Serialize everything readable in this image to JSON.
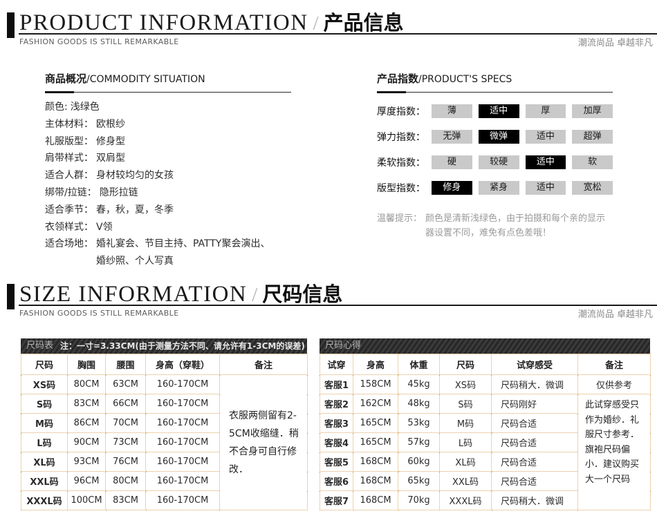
{
  "section_product": {
    "title_en": "PRODUCT INFORMATION",
    "separator": "/",
    "title_cn": "产品信息",
    "tagline_en": "FASHION GOODS IS STILL REMARKABLE",
    "tagline_cn": "潮流尚品 卓越非凡"
  },
  "section_size": {
    "title_en": "SIZE INFORMATION",
    "separator": "/",
    "title_cn": "尺码信息",
    "tagline_en": "FASHION GOODS IS STILL REMARKABLE",
    "tagline_cn": "潮流尚品 卓越非凡"
  },
  "commodity": {
    "title_cn": "商品概况",
    "title_en": "/COMMODITY SITUATION",
    "items": [
      {
        "label": "颜色:",
        "value": "浅绿色"
      },
      {
        "label": "主体材料：",
        "value": "欧根纱"
      },
      {
        "label": "礼服版型：",
        "value": "修身型"
      },
      {
        "label": "肩带样式：",
        "value": "双肩型"
      },
      {
        "label": "适合人群：",
        "value": "身材较均匀的女孩"
      },
      {
        "label": "绑带/拉链：",
        "value": "隐形拉链"
      },
      {
        "label": "适合季节：",
        "value": "春，秋，夏，冬季"
      },
      {
        "label": "衣领样式：",
        "value": "V领"
      },
      {
        "label": "适合场地：",
        "value": "婚礼宴会、节目主持、PATTY聚会演出、\n婚纱照、个人写真"
      }
    ]
  },
  "specs": {
    "title_cn": "产品指数",
    "title_en": "/PRODUCT'S SPECS",
    "rows": [
      {
        "label": "厚度指数：",
        "options": [
          "薄",
          "适中",
          "厚",
          "加厚"
        ],
        "selected": 1
      },
      {
        "label": "弹力指数：",
        "options": [
          "无弹",
          "微弹",
          "适中",
          "超弹"
        ],
        "selected": 1
      },
      {
        "label": "柔软指数：",
        "options": [
          "硬",
          "较硬",
          "适中",
          "软"
        ],
        "selected": 2
      },
      {
        "label": "版型指数：",
        "options": [
          "修身",
          "紧身",
          "适中",
          "宽松"
        ],
        "selected": 0
      }
    ],
    "notice_label": "温馨提示：",
    "notice_text": "颜色是清新浅绿色，由于拍摄和每个亲的显示器设置不同，难免有点色差哦！"
  },
  "size_table": {
    "caption": "尺码表",
    "caption_note": "注：一寸=3.33CM(由于测量方法不同、请允许有1-3CM的误差)",
    "columns": [
      "尺码",
      "胸围",
      "腰围",
      "身高（穿鞋）",
      "备注"
    ],
    "rows": [
      {
        "cells": [
          "XS码",
          "80CM",
          "63CM",
          "160-170CM"
        ],
        "remark": {
          "text": "衣服两侧留有2-5CM收缩缝．稍不合身可自行修改．",
          "rowspan": 7,
          "cls": "remark-big"
        }
      },
      {
        "cells": [
          "S码",
          "83CM",
          "66CM",
          "160-170CM"
        ]
      },
      {
        "cells": [
          "M码",
          "86CM",
          "70CM",
          "160-170CM"
        ]
      },
      {
        "cells": [
          "L码",
          "90CM",
          "73CM",
          "160-170CM"
        ]
      },
      {
        "cells": [
          "XL码",
          "93CM",
          "76CM",
          "160-170CM"
        ]
      },
      {
        "cells": [
          "XXL码",
          "96CM",
          "80CM",
          "160-170CM"
        ]
      },
      {
        "cells": [
          "XXXL码",
          "100CM",
          "83CM",
          "160-170CM"
        ]
      }
    ]
  },
  "fit_table": {
    "caption": "尺码心得",
    "caption_note": "",
    "columns": [
      "试穿",
      "身高",
      "体重",
      "尺码",
      "试穿感受",
      "备注"
    ],
    "rows": [
      {
        "cells": [
          "客服1",
          "158CM",
          "45kg",
          "XS码",
          "尺码稍大．微调"
        ],
        "remark": {
          "text": "仅供参考",
          "rowspan": 1,
          "cls": "remark-center"
        }
      },
      {
        "cells": [
          "客服2",
          "162CM",
          "48kg",
          "S码",
          "尺码刚好"
        ],
        "remark": {
          "text": "此试穿感受只作为婚纱．礼服尺寸参考．旗袍尺码偏小．建议购买大一个尺码",
          "rowspan": 6,
          "cls": "remark-top"
        }
      },
      {
        "cells": [
          "客服3",
          "165CM",
          "53kg",
          "M码",
          "尺码合适"
        ]
      },
      {
        "cells": [
          "客服4",
          "165CM",
          "57kg",
          "L码",
          "尺码合适"
        ]
      },
      {
        "cells": [
          "客服5",
          "168CM",
          "60kg",
          "XL码",
          "尺码合适"
        ]
      },
      {
        "cells": [
          "客服6",
          "168CM",
          "65kg",
          "XXL码",
          "尺码合适"
        ]
      },
      {
        "cells": [
          "客服7",
          "168CM",
          "70kg",
          "XXXL码",
          "尺码稍大．微调"
        ]
      }
    ]
  },
  "colors": {
    "accent_border": "#d8a55d",
    "selected_bg": "#000000",
    "option_bg": "#c9c9c9",
    "caption_bar_bg": "#2e2e2e"
  }
}
